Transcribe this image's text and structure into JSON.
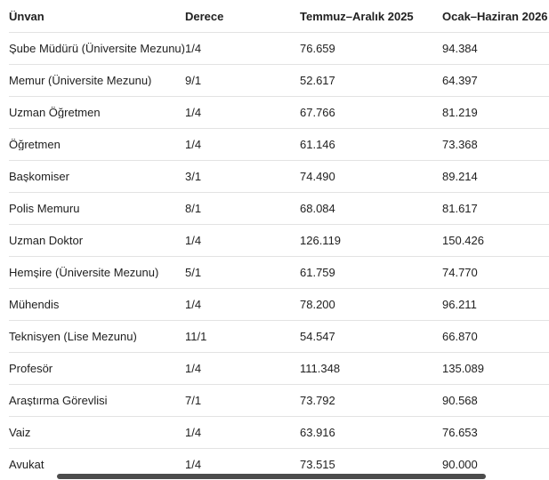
{
  "table": {
    "columns": [
      "Ünvan",
      "Derece",
      "Temmuz–Aralık 2025",
      "Ocak–Haziran 2026"
    ],
    "rows": [
      [
        "Şube Müdürü (Üniversite Mezunu)",
        "1/4",
        "76.659",
        "94.384"
      ],
      [
        "Memur (Üniversite Mezunu)",
        "9/1",
        "52.617",
        "64.397"
      ],
      [
        "Uzman Öğretmen",
        "1/4",
        "67.766",
        "81.219"
      ],
      [
        "Öğretmen",
        "1/4",
        "61.146",
        "73.368"
      ],
      [
        "Başkomiser",
        "3/1",
        "74.490",
        "89.214"
      ],
      [
        "Polis Memuru",
        "8/1",
        "68.084",
        "81.617"
      ],
      [
        "Uzman Doktor",
        "1/4",
        "126.119",
        "150.426"
      ],
      [
        "Hemşire (Üniversite Mezunu)",
        "5/1",
        "61.759",
        "74.770"
      ],
      [
        "Mühendis",
        "1/4",
        "78.200",
        "96.211"
      ],
      [
        "Teknisyen (Lise Mezunu)",
        "11/1",
        "54.547",
        "66.870"
      ],
      [
        "Profesör",
        "1/4",
        "111.348",
        "135.089"
      ],
      [
        "Araştırma Görevlisi",
        "7/1",
        "73.792",
        "90.568"
      ],
      [
        "Vaiz",
        "1/4",
        "63.916",
        "76.653"
      ],
      [
        "Avukat",
        "1/4",
        "73.515",
        "90.000"
      ]
    ]
  },
  "chart_data": {
    "type": "table",
    "columns": [
      "Ünvan",
      "Derece",
      "Temmuz–Aralık 2025",
      "Ocak–Haziran 2026"
    ],
    "rows": [
      [
        "Şube Müdürü (Üniversite Mezunu)",
        "1/4",
        "76.659",
        "94.384"
      ],
      [
        "Memur (Üniversite Mezunu)",
        "9/1",
        "52.617",
        "64.397"
      ],
      [
        "Uzman Öğretmen",
        "1/4",
        "67.766",
        "81.219"
      ],
      [
        "Öğretmen",
        "1/4",
        "61.146",
        "73.368"
      ],
      [
        "Başkomiser",
        "3/1",
        "74.490",
        "89.214"
      ],
      [
        "Polis Memuru",
        "8/1",
        "68.084",
        "81.617"
      ],
      [
        "Uzman Doktor",
        "1/4",
        "126.119",
        "150.426"
      ],
      [
        "Hemşire (Üniversite Mezunu)",
        "5/1",
        "61.759",
        "74.770"
      ],
      [
        "Mühendis",
        "1/4",
        "78.200",
        "96.211"
      ],
      [
        "Teknisyen (Lise Mezunu)",
        "11/1",
        "54.547",
        "66.870"
      ],
      [
        "Profesör",
        "1/4",
        "111.348",
        "135.089"
      ],
      [
        "Araştırma Görevlisi",
        "7/1",
        "73.792",
        "90.568"
      ],
      [
        "Vaiz",
        "1/4",
        "63.916",
        "76.653"
      ],
      [
        "Avukat",
        "1/4",
        "73.515",
        "90.000"
      ]
    ]
  },
  "colors": {
    "background": "#ffffff",
    "text": "#212121",
    "divider": "#e3e3e3",
    "scrollbar_thumb": "#4c4c4c"
  }
}
